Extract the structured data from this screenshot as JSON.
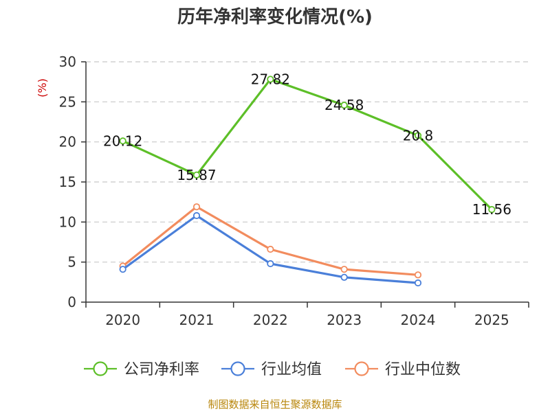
{
  "chart_data": {
    "type": "line",
    "title": "历年净利率变化情况(%)",
    "ylabel": "(%)",
    "categories": [
      "2020",
      "2021",
      "2022",
      "2023",
      "2024",
      "2025"
    ],
    "ylim": [
      0,
      30
    ],
    "yticks": [
      0,
      5,
      10,
      15,
      20,
      25,
      30
    ],
    "grid": true,
    "legend_position": "bottom",
    "series": [
      {
        "name": "公司净利率",
        "color": "#5dbf28",
        "values": [
          20.12,
          15.87,
          27.82,
          24.58,
          20.8,
          11.56
        ],
        "labels": [
          "20.12",
          "15.87",
          "27.82",
          "24.58",
          "20.8",
          "11.56"
        ]
      },
      {
        "name": "行业均值",
        "color": "#4a7fd9",
        "values": [
          4.1,
          10.8,
          4.8,
          3.1,
          2.4,
          null
        ]
      },
      {
        "name": "行业中位数",
        "color": "#f28c5e",
        "values": [
          4.5,
          11.9,
          6.6,
          4.1,
          3.4,
          null
        ]
      }
    ],
    "source": "制图数据来自恒生聚源数据库"
  }
}
